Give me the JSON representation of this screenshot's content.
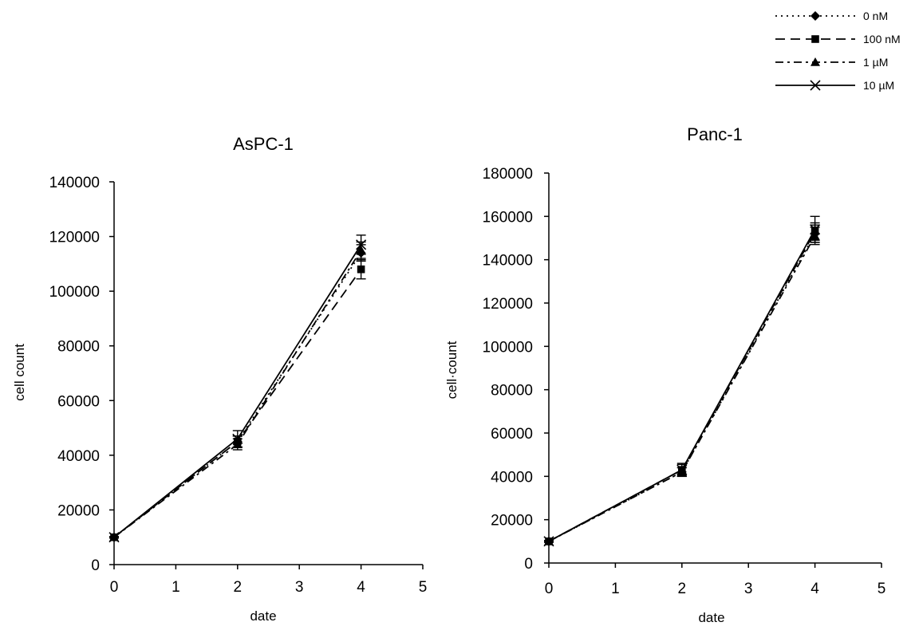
{
  "legend": {
    "entries": [
      {
        "label": "0 nM",
        "marker": "diamond",
        "dash": "2,5"
      },
      {
        "label": "100 nM",
        "marker": "square",
        "dash": "12,7"
      },
      {
        "label": "1 µM",
        "marker": "triangle",
        "dash": "10,5,3,5"
      },
      {
        "label": "10 µM",
        "marker": "x",
        "dash": "none"
      }
    ]
  },
  "chart_data": [
    {
      "type": "line",
      "title": "AsPC-1",
      "xlabel": "date",
      "ylabel": "cell count",
      "xlim": [
        0,
        5
      ],
      "ylim": [
        0,
        140000
      ],
      "xticks": [
        "0",
        "1",
        "2",
        "3",
        "4",
        "5"
      ],
      "yticks": [
        "0",
        "20000",
        "40000",
        "60000",
        "80000",
        "100000",
        "120000",
        "140000"
      ],
      "x": [
        0,
        2,
        4
      ],
      "series": [
        {
          "name": "0 nM",
          "values": [
            10000,
            45000,
            114000
          ],
          "errors": [
            300,
            2000,
            3000
          ]
        },
        {
          "name": "100 nM",
          "values": [
            10000,
            45000,
            108000
          ],
          "errors": [
            300,
            2000,
            3500
          ]
        },
        {
          "name": "1 µM",
          "values": [
            10000,
            44000,
            115000
          ],
          "errors": [
            300,
            2000,
            3000
          ]
        },
        {
          "name": "10 µM",
          "values": [
            10000,
            46000,
            117000
          ],
          "errors": [
            300,
            3000,
            3500
          ]
        }
      ]
    },
    {
      "type": "line",
      "title": "Panc-1",
      "xlabel": "date",
      "ylabel": "cell·count",
      "xlim": [
        0,
        5
      ],
      "ylim": [
        0,
        180000
      ],
      "xticks": [
        "0",
        "1",
        "2",
        "3",
        "4",
        "5"
      ],
      "yticks": [
        "0",
        "20000",
        "40000",
        "60000",
        "80000",
        "100000",
        "120000",
        "140000",
        "160000",
        "180000"
      ],
      "x": [
        0,
        2,
        4
      ],
      "series": [
        {
          "name": "0 nM",
          "values": [
            10000,
            42000,
            152000
          ],
          "errors": [
            400,
            2000,
            4000
          ]
        },
        {
          "name": "100 nM",
          "values": [
            10000,
            43000,
            153000
          ],
          "errors": [
            400,
            2500,
            4000
          ]
        },
        {
          "name": "1 µM",
          "values": [
            10000,
            42000,
            151000
          ],
          "errors": [
            400,
            2000,
            4000
          ]
        },
        {
          "name": "10 µM",
          "values": [
            10000,
            43000,
            154000
          ],
          "errors": [
            400,
            3000,
            6000
          ]
        }
      ]
    }
  ]
}
